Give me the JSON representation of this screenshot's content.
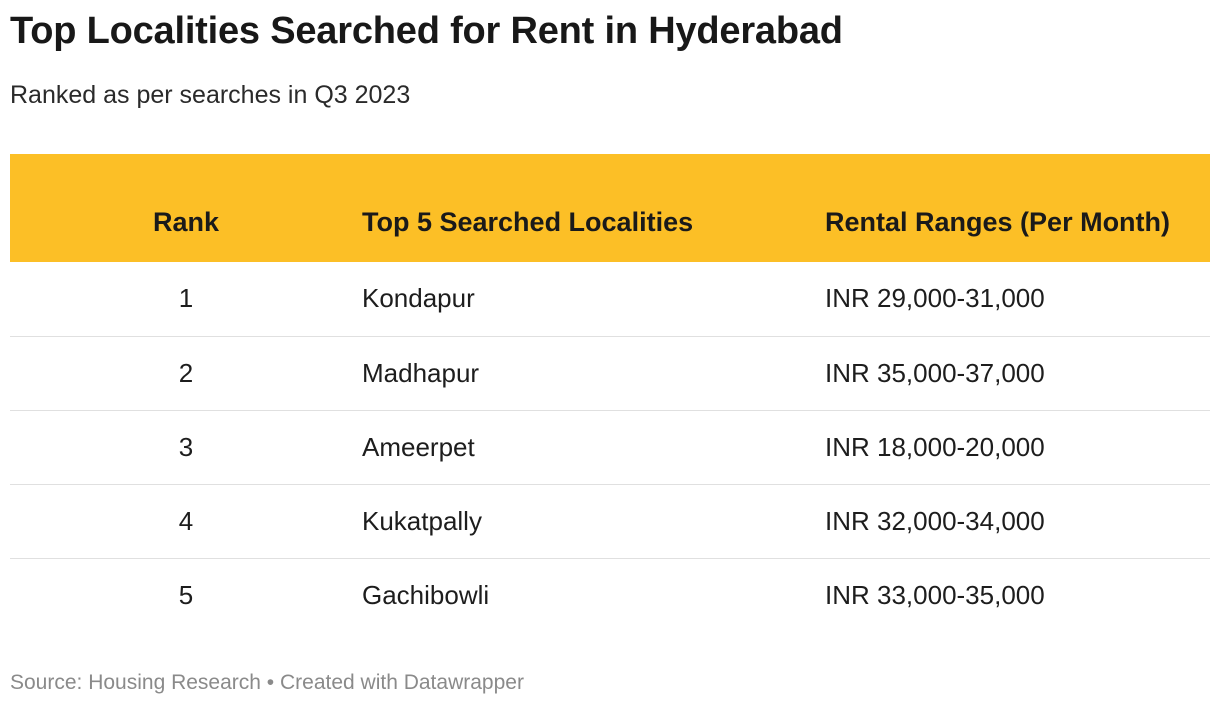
{
  "header": {
    "title": "Top Localities Searched for Rent in Hyderabad",
    "subtitle": "Ranked as per searches in Q3 2023"
  },
  "table": {
    "columns": {
      "rank": "Rank",
      "locality": "Top 5 Searched Localities",
      "range": "Rental Ranges (Per Month)"
    },
    "rows": [
      {
        "rank": "1",
        "locality": "Kondapur",
        "range": "INR 29,000-31,000"
      },
      {
        "rank": "2",
        "locality": "Madhapur",
        "range": "INR 35,000-37,000"
      },
      {
        "rank": "3",
        "locality": "Ameerpet",
        "range": "INR 18,000-20,000"
      },
      {
        "rank": "4",
        "locality": "Kukatpally",
        "range": "INR 32,000-34,000"
      },
      {
        "rank": "5",
        "locality": "Gachibowli",
        "range": "INR 33,000-35,000"
      }
    ]
  },
  "footer": {
    "text": "Source: Housing Research • Created with Datawrapper"
  },
  "colors": {
    "header_background": "#fcbf26",
    "row_divider": "#e0e0e0",
    "footer_text": "#8a8a8a"
  }
}
